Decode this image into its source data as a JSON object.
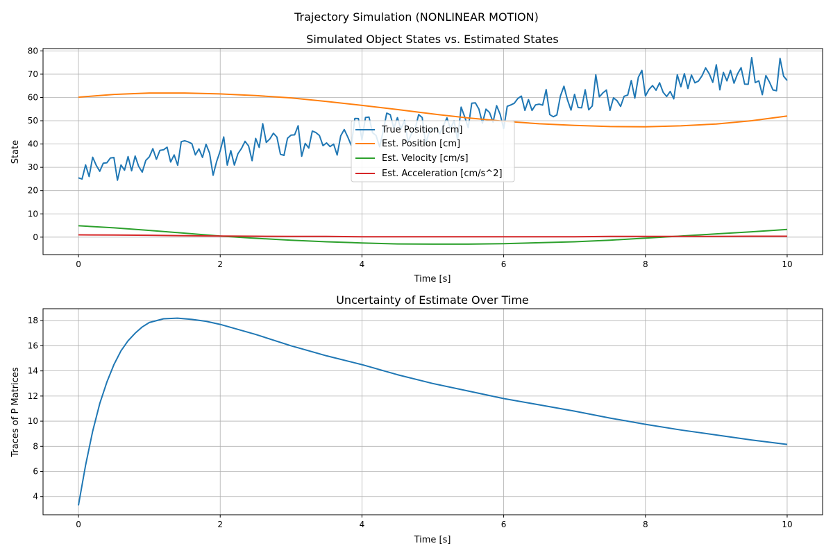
{
  "figure": {
    "suptitle": "Trajectory Simulation (NONLINEAR MOTION)"
  },
  "chart_data": [
    {
      "type": "line",
      "title": "Simulated Object States vs. Estimated States",
      "xlabel": "Time [s]",
      "ylabel": "State",
      "xlim": [
        -0.5,
        10.5
      ],
      "ylim": [
        -7.5,
        81
      ],
      "xticks": [
        0,
        2,
        4,
        6,
        8,
        10
      ],
      "yticks": [
        0,
        10,
        20,
        30,
        40,
        50,
        60,
        70,
        80
      ],
      "grid": true,
      "legend_placement": "center",
      "series": [
        {
          "name": "True Position [cm]",
          "color": "#1f77b4",
          "noisy": true,
          "x": [
            0,
            0.5,
            1,
            1.5,
            2,
            2.5,
            3,
            3.5,
            4,
            4.5,
            5,
            5.5,
            6,
            6.5,
            7,
            7.5,
            8,
            8.5,
            9,
            9.5,
            10
          ],
          "y": [
            25.5,
            33,
            34,
            36,
            38,
            40,
            41,
            43,
            45,
            47,
            49,
            51,
            53,
            56,
            58,
            60,
            63,
            65,
            67,
            69,
            67.3
          ]
        },
        {
          "name": "Est. Position [cm]",
          "color": "#ff7f0e",
          "x": [
            0,
            0.5,
            1,
            1.5,
            2,
            2.5,
            3,
            3.5,
            4,
            4.5,
            5,
            5.5,
            6,
            6.5,
            7,
            7.5,
            8,
            8.5,
            9,
            9.5,
            10
          ],
          "y": [
            60.1,
            61.3,
            61.9,
            61.9,
            61.5,
            60.8,
            59.8,
            58.3,
            56.6,
            54.8,
            52.9,
            51.2,
            49.8,
            48.7,
            48.0,
            47.5,
            47.4,
            47.8,
            48.6,
            50,
            52
          ]
        },
        {
          "name": "Est. Velocity [cm/s]",
          "color": "#2ca02c",
          "x": [
            0,
            0.5,
            1,
            1.5,
            2,
            2.5,
            3,
            3.5,
            4,
            4.5,
            5,
            5.5,
            6,
            6.5,
            7,
            7.5,
            8,
            8.5,
            9,
            9.5,
            10
          ],
          "y": [
            4.9,
            4.0,
            2.9,
            1.7,
            0.5,
            -0.5,
            -1.3,
            -2.0,
            -2.5,
            -2.9,
            -3.0,
            -3.0,
            -2.8,
            -2.4,
            -2.0,
            -1.3,
            -0.4,
            0.5,
            1.4,
            2.3,
            3.3
          ]
        },
        {
          "name": "Est. Acceleration [cm/s^2]",
          "color": "#d62728",
          "x": [
            0,
            0.5,
            1,
            1.5,
            2,
            2.5,
            3,
            3.5,
            4,
            4.5,
            5,
            5.5,
            6,
            6.5,
            7,
            7.5,
            8,
            8.5,
            9,
            9.5,
            10
          ],
          "y": [
            1.0,
            0.9,
            0.8,
            0.6,
            0.5,
            0.4,
            0.3,
            0.3,
            0.2,
            0.2,
            0.2,
            0.2,
            0.2,
            0.2,
            0.2,
            0.3,
            0.3,
            0.3,
            0.3,
            0.4,
            0.4
          ]
        }
      ]
    },
    {
      "type": "line",
      "title": "Uncertainty of Estimate Over Time",
      "xlabel": "Time [s]",
      "ylabel": "Traces of P Matrices",
      "xlim": [
        -0.5,
        10.5
      ],
      "ylim": [
        2.55,
        18.95
      ],
      "xticks": [
        0,
        2,
        4,
        6,
        8,
        10
      ],
      "yticks": [
        4,
        6,
        8,
        10,
        12,
        14,
        16,
        18
      ],
      "grid": true,
      "series": [
        {
          "color": "#1f77b4",
          "x": [
            0,
            0.1,
            0.2,
            0.3,
            0.4,
            0.5,
            0.6,
            0.7,
            0.8,
            0.9,
            1,
            1.2,
            1.4,
            1.6,
            1.8,
            2,
            2.5,
            3,
            3.5,
            4,
            4.5,
            5,
            5.5,
            6,
            6.5,
            7,
            7.5,
            8,
            8.5,
            9,
            9.5,
            10
          ],
          "y": [
            3.3,
            6.5,
            9.2,
            11.4,
            13.1,
            14.5,
            15.6,
            16.4,
            17.0,
            17.5,
            17.85,
            18.15,
            18.2,
            18.1,
            17.95,
            17.7,
            16.9,
            16.0,
            15.2,
            14.5,
            13.7,
            13.0,
            12.4,
            11.8,
            11.3,
            10.8,
            10.25,
            9.75,
            9.3,
            8.9,
            8.5,
            8.15
          ]
        }
      ]
    }
  ]
}
